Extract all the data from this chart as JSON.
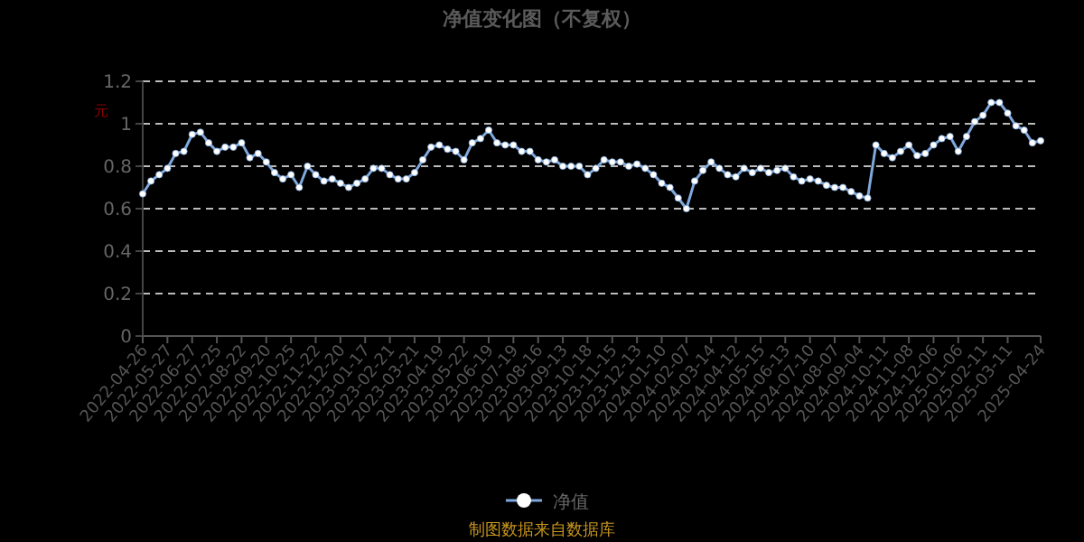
{
  "chart_data": {
    "type": "line",
    "title": "净值变化图（不复权）",
    "ylabel": "元",
    "categories": [
      "2022-04-26",
      null,
      null,
      "2022-05-27",
      null,
      null,
      "2022-06-27",
      null,
      null,
      "2022-07-25",
      null,
      null,
      "2022-08-22",
      null,
      null,
      "2022-09-20",
      null,
      null,
      "2022-10-25",
      null,
      null,
      "2022-11-22",
      null,
      null,
      "2022-12-20",
      null,
      null,
      "2023-01-17",
      null,
      null,
      "2023-02-21",
      null,
      null,
      "2023-03-21",
      null,
      null,
      "2023-04-19",
      null,
      null,
      "2023-05-22",
      null,
      null,
      "2023-06-19",
      null,
      null,
      "2023-07-19",
      null,
      null,
      "2023-08-16",
      null,
      null,
      "2023-09-13",
      null,
      null,
      "2023-10-18",
      null,
      null,
      "2023-11-15",
      null,
      null,
      "2023-12-13",
      null,
      null,
      "2024-01-10",
      null,
      null,
      "2024-02-07",
      null,
      null,
      "2024-03-14",
      null,
      null,
      "2024-04-12",
      null,
      null,
      "2024-05-15",
      null,
      null,
      "2024-06-13",
      null,
      null,
      "2024-07-10",
      null,
      null,
      "2024-08-07",
      null,
      null,
      "2024-09-04",
      null,
      null,
      "2024-10-11",
      null,
      null,
      "2024-11-08",
      null,
      null,
      "2024-12-06",
      null,
      null,
      "2025-01-06",
      null,
      null,
      "2025-02-11",
      null,
      null,
      "2025-03-11",
      null,
      null,
      null,
      "2025-04-24"
    ],
    "series": [
      {
        "name": "净值",
        "color": "#7fa8dc",
        "values": [
          0.67,
          0.73,
          0.76,
          0.79,
          0.86,
          0.87,
          0.95,
          0.96,
          0.91,
          0.87,
          0.89,
          0.89,
          0.91,
          0.84,
          0.86,
          0.82,
          0.77,
          0.74,
          0.76,
          0.7,
          0.8,
          0.76,
          0.73,
          0.74,
          0.72,
          0.7,
          0.72,
          0.74,
          0.79,
          0.79,
          0.76,
          0.74,
          0.74,
          0.77,
          0.83,
          0.89,
          0.9,
          0.88,
          0.87,
          0.83,
          0.91,
          0.93,
          0.97,
          0.91,
          0.9,
          0.9,
          0.87,
          0.87,
          0.83,
          0.82,
          0.83,
          0.8,
          0.8,
          0.8,
          0.76,
          0.79,
          0.83,
          0.82,
          0.82,
          0.8,
          0.81,
          0.79,
          0.76,
          0.72,
          0.7,
          0.65,
          0.6,
          0.73,
          0.78,
          0.82,
          0.79,
          0.76,
          0.75,
          0.79,
          0.77,
          0.79,
          0.77,
          0.78,
          0.79,
          0.75,
          0.73,
          0.74,
          0.73,
          0.71,
          0.7,
          0.7,
          0.68,
          0.66,
          0.65,
          0.9,
          0.86,
          0.84,
          0.87,
          0.9,
          0.85,
          0.86,
          0.9,
          0.93,
          0.94,
          0.87,
          0.94,
          1.01,
          1.04,
          1.1,
          1.1,
          1.05,
          0.99,
          0.97,
          0.91,
          0.92
        ]
      }
    ],
    "ylim": [
      0,
      1.2
    ],
    "yticks": [
      0,
      0.2,
      0.4,
      0.6,
      0.8,
      1,
      1.2
    ],
    "grid": "y",
    "legend": "bottom",
    "marker": "circle",
    "line_style": "solid",
    "annotations": [
      "制图数据来自数据库"
    ]
  }
}
